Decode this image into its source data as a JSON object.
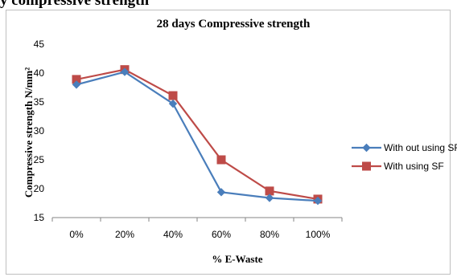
{
  "top_text": "y compressive strength",
  "chart_data": {
    "type": "line",
    "title": "28 days Compressive  strength",
    "xlabel": "% E-Waste",
    "ylabel": "Compressive strength N/mm²",
    "categories": [
      "0%",
      "20%",
      "40%",
      "60%",
      "80%",
      "100%"
    ],
    "ylim": [
      15,
      45
    ],
    "yticks": [
      15,
      20,
      25,
      30,
      35,
      40,
      45
    ],
    "grid": false,
    "legend_position": "right",
    "series": [
      {
        "name": "With out using SF",
        "color": "#4a7ebb",
        "marker": "diamond",
        "values": [
          38.0,
          40.2,
          34.7,
          19.4,
          18.4,
          17.9
        ]
      },
      {
        "name": "With using SF",
        "color": "#be4b48",
        "marker": "square",
        "values": [
          38.9,
          40.6,
          36.1,
          25.0,
          19.6,
          18.2
        ]
      }
    ]
  }
}
